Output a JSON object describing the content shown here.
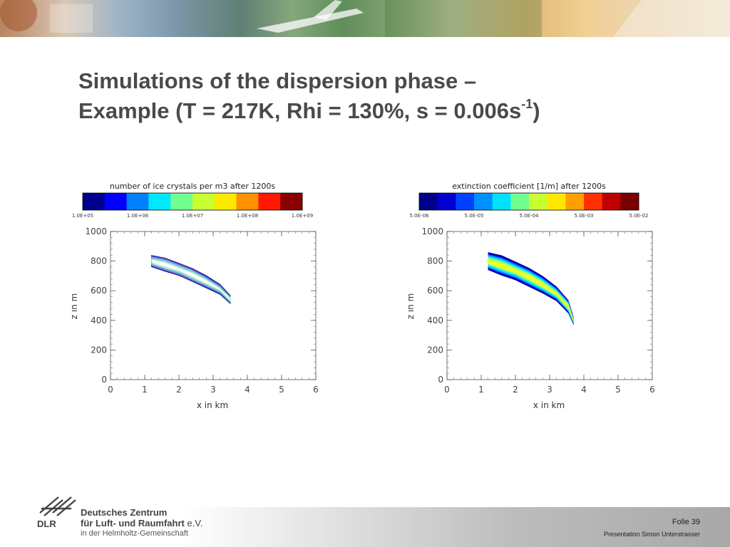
{
  "slide": {
    "title_line1": "Simulations of the dispersion phase –",
    "title_line2": "Example (T = 217K, Rhi = 130%, s = 0.006s",
    "title_sup": "-1",
    "title_close": ")"
  },
  "footer": {
    "org_line1": "Deutsches Zentrum",
    "org_line2": "für Luft- und Raumfahrt",
    "org_ev": "e.V.",
    "org_line3": "in der Helmholtz-Gemeinschaft",
    "logo_text": "DLR",
    "folie": "Folie 39",
    "presenter": "Presentation Simon Unterstrasser"
  },
  "chart_data": [
    {
      "type": "heatmap",
      "title": "number of ice crystals per m3 after 1200s",
      "colorbar_labels": [
        "1.0E+05",
        "1.0E+06",
        "1.0E+07",
        "1.0E+08",
        "1.0E+09"
      ],
      "colorbar_colors": [
        "#00008c",
        "#0000ff",
        "#0080ff",
        "#00e8ff",
        "#70ff90",
        "#c8ff30",
        "#ffe800",
        "#ff9000",
        "#ff1800",
        "#880000"
      ],
      "xlabel": "x in km",
      "ylabel": "z in m",
      "xlim": [
        0,
        6
      ],
      "ylim": [
        0,
        1000
      ],
      "xticks": [
        "0",
        "1",
        "2",
        "3",
        "4",
        "5",
        "6"
      ],
      "yticks": [
        "0",
        "200",
        "400",
        "600",
        "800",
        "1000"
      ],
      "render": "contour",
      "plume": [
        {
          "x": 1.2,
          "z": 800,
          "w": 38
        },
        {
          "x": 1.6,
          "z": 775,
          "w": 42
        },
        {
          "x": 2.0,
          "z": 745,
          "w": 44
        },
        {
          "x": 2.4,
          "z": 705,
          "w": 42
        },
        {
          "x": 2.8,
          "z": 660,
          "w": 40
        },
        {
          "x": 3.2,
          "z": 610,
          "w": 36
        },
        {
          "x": 3.5,
          "z": 540,
          "w": 24
        }
      ]
    },
    {
      "type": "heatmap",
      "title": "extinction coefficient [1/m] after 1200s",
      "colorbar_labels": [
        "5.0E-06",
        "5.0E-05",
        "5.0E-04",
        "5.0E-03",
        "5.0E-02"
      ],
      "colorbar_colors": [
        "#00008c",
        "#0000d0",
        "#0040ff",
        "#0090ff",
        "#00e0ff",
        "#70ff90",
        "#c8ff30",
        "#ffe800",
        "#ffa000",
        "#ff3000",
        "#c00000",
        "#780000"
      ],
      "xlabel": "x in km",
      "ylabel": "z in m",
      "xlim": [
        0,
        6
      ],
      "ylim": [
        0,
        1000
      ],
      "xticks": [
        "0",
        "1",
        "2",
        "3",
        "4",
        "5",
        "6"
      ],
      "yticks": [
        "0",
        "200",
        "400",
        "600",
        "800",
        "1000"
      ],
      "render": "filled",
      "plume": [
        {
          "x": 1.2,
          "z": 800,
          "w": 60
        },
        {
          "x": 1.6,
          "z": 770,
          "w": 66
        },
        {
          "x": 2.0,
          "z": 735,
          "w": 66
        },
        {
          "x": 2.4,
          "z": 690,
          "w": 62
        },
        {
          "x": 2.8,
          "z": 640,
          "w": 58
        },
        {
          "x": 3.2,
          "z": 580,
          "w": 52
        },
        {
          "x": 3.55,
          "z": 490,
          "w": 42
        },
        {
          "x": 3.7,
          "z": 395,
          "w": 28
        }
      ]
    }
  ]
}
